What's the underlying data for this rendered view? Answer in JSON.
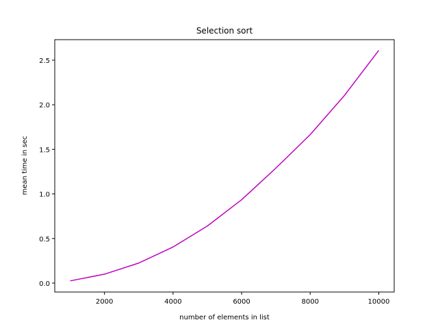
{
  "chart_data": {
    "type": "line",
    "title": "Selection sort",
    "xlabel": "number of elements in list",
    "ylabel": "mean time in sec",
    "xlim": [
      550,
      10450
    ],
    "ylim": [
      -0.1,
      2.73
    ],
    "xticks": [
      2000,
      4000,
      6000,
      8000,
      10000
    ],
    "xtick_labels": [
      "2000",
      "4000",
      "6000",
      "8000",
      "10000"
    ],
    "yticks": [
      0.0,
      0.5,
      1.0,
      1.5,
      2.0,
      2.5
    ],
    "ytick_labels": [
      "0.0",
      "0.5",
      "1.0",
      "1.5",
      "2.0",
      "2.5"
    ],
    "grid": false,
    "legend": "none",
    "series": [
      {
        "color": "#bf00bf",
        "x": [
          1000,
          2000,
          3000,
          4000,
          5000,
          6000,
          7000,
          8000,
          9000,
          10000
        ],
        "y": [
          0.025,
          0.1,
          0.225,
          0.405,
          0.64,
          0.935,
          1.29,
          1.665,
          2.105,
          2.61
        ]
      }
    ]
  }
}
